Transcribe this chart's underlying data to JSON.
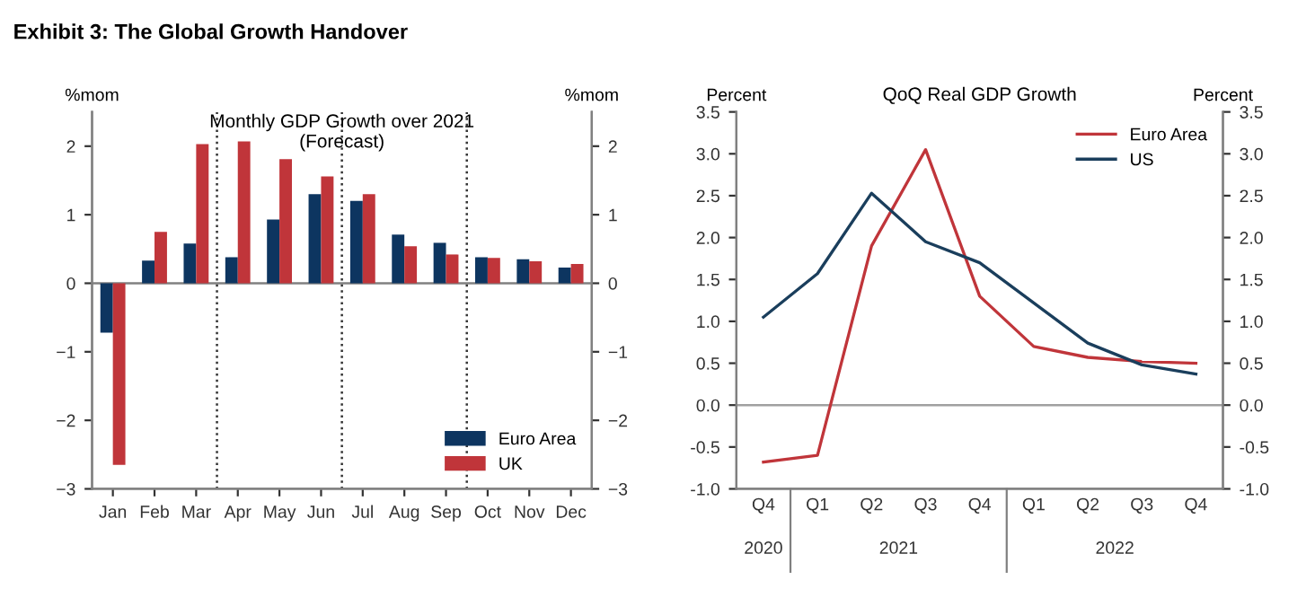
{
  "chart_data": [
    {
      "type": "bar",
      "title": "Exhibit 3: The Global Growth Handover",
      "subtitle": "Monthly GDP Growth over 2021\n(Forecast)",
      "ylabel": "%mom",
      "y2label": "%mom",
      "categories": [
        "Jan",
        "Feb",
        "Mar",
        "Apr",
        "May",
        "Jun",
        "Jul",
        "Aug",
        "Sep",
        "Oct",
        "Nov",
        "Dec"
      ],
      "series": [
        {
          "name": "Euro Area",
          "color": "#0d3560",
          "values": [
            -0.72,
            0.33,
            0.58,
            0.38,
            0.93,
            1.3,
            1.2,
            0.71,
            0.59,
            0.38,
            0.35,
            0.23
          ]
        },
        {
          "name": "UK",
          "color": "#c0353a",
          "values": [
            -2.65,
            0.75,
            2.03,
            2.07,
            1.81,
            1.56,
            1.3,
            0.54,
            0.42,
            0.37,
            0.32,
            0.28
          ]
        }
      ],
      "ylim": [
        -3,
        2.5
      ],
      "yticks": [
        -3,
        -2,
        -1,
        0,
        1,
        2
      ],
      "y2lim": [
        -3,
        2.5
      ],
      "y2ticks": [
        -3,
        -2,
        -1,
        0,
        1,
        2
      ],
      "ref_lines": [
        {
          "axis": "y",
          "value": 0,
          "color": "#808080",
          "line_style": "solid"
        }
      ],
      "legend": "bottom right",
      "grid": false
    },
    {
      "type": "line",
      "subtitle": "QoQ Real GDP Growth",
      "ylabel": "Percent",
      "y2label": "Percent",
      "categories": [
        "Q4",
        "Q1",
        "Q2",
        "Q3",
        "Q4",
        "Q1",
        "Q2",
        "Q3",
        "Q4"
      ],
      "series": [
        {
          "name": "Euro Area",
          "color": "#c0353a",
          "values": [
            -0.68,
            -0.6,
            1.9,
            3.05,
            1.3,
            0.7,
            0.57,
            0.52,
            0.5
          ]
        },
        {
          "name": "US",
          "color": "#1a3e5c",
          "values": [
            1.05,
            1.57,
            2.53,
            1.95,
            1.7,
            1.22,
            0.74,
            0.48,
            0.37
          ]
        }
      ],
      "ylim": [
        -1,
        3.5
      ],
      "yticks": [
        {
          "value": -1,
          "label": "-1.0"
        },
        {
          "value": -0.5,
          "label": "-0.5"
        },
        {
          "value": 0,
          "label": "0.0"
        },
        {
          "value": 0.5,
          "label": "0.5"
        },
        {
          "value": 1,
          "label": "1.0"
        },
        {
          "value": 1.5,
          "label": "1.5"
        },
        {
          "value": 2,
          "label": "2.0"
        },
        {
          "value": 2.5,
          "label": "2.5"
        },
        {
          "value": 3,
          "label": "3.0"
        },
        {
          "value": 3.5,
          "label": "3.5"
        }
      ],
      "y2lim": [
        -1,
        3.5
      ],
      "y2ticks": [
        {
          "value": -1,
          "label": "-1.0"
        },
        {
          "value": -0.5,
          "label": "-0.5"
        },
        {
          "value": 0,
          "label": "0.0"
        },
        {
          "value": 0.5,
          "label": "0.5"
        },
        {
          "value": 1,
          "label": "1.0"
        },
        {
          "value": 1.5,
          "label": "1.5"
        },
        {
          "value": 2,
          "label": "2.0"
        },
        {
          "value": 2.5,
          "label": "2.5"
        },
        {
          "value": 3,
          "label": "3.0"
        },
        {
          "value": 3.5,
          "label": "3.5"
        }
      ],
      "ref_lines": [
        {
          "axis": "y",
          "value": 0,
          "color": "#a0a0a0",
          "line_style": "solid"
        }
      ],
      "annotations": [
        "2020",
        "2021",
        "2022"
      ],
      "legend": "top right",
      "grid": false,
      "marker": "none",
      "line_style": "solid"
    }
  ]
}
